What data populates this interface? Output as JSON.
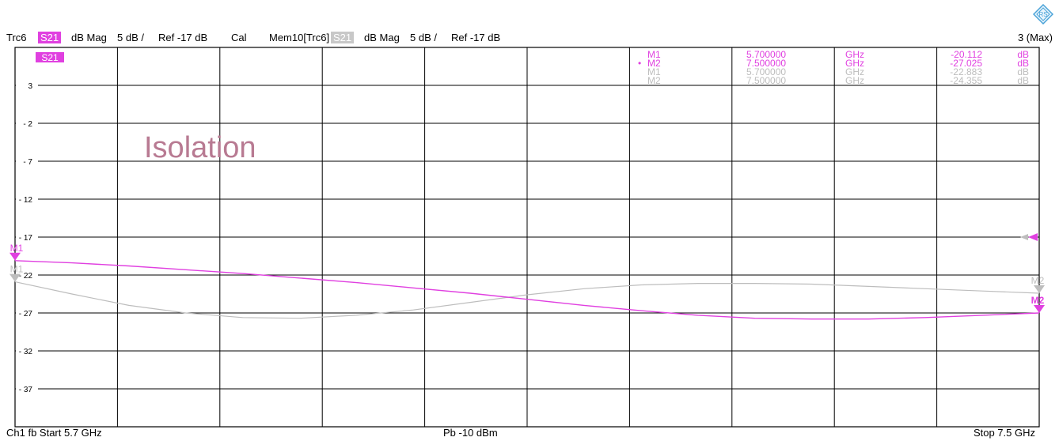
{
  "header": {
    "trace_name": "Trc6",
    "trace_param": "S21",
    "trace_format": "dB Mag",
    "trace_scale": "5 dB /",
    "trace_ref": "Ref -17 dB",
    "cal": "Cal",
    "mem_name": "Mem10[Trc6]",
    "mem_param": "S21",
    "mem_format": "dB Mag",
    "mem_scale": "5 dB /",
    "mem_ref": "Ref -17 dB",
    "right": "3 (Max)"
  },
  "footer": {
    "left": "Ch1  fb  Start  5.7 GHz",
    "center": "Pb  -10 dBm",
    "right": "Stop  7.5 GHz"
  },
  "colors": {
    "trace": "#e040e0",
    "memory": "#bdbdbd",
    "grid": "#000000",
    "annotation": "#b87a92",
    "logo": "#4aa3d8"
  },
  "logo_icon": "rohde-schwarz-logo-icon",
  "chart_data": {
    "type": "line",
    "title": "",
    "annotation": "Isolation",
    "trace_label": "S21",
    "x_unit": "GHz",
    "y_unit": "dB",
    "xlim": [
      5.7,
      7.5
    ],
    "ylim": [
      -42,
      8
    ],
    "x_divisions": 10,
    "y_ticks": [
      3,
      -2,
      -7,
      -12,
      -17,
      -22,
      -27,
      -32,
      -37
    ],
    "ref_level": -17,
    "grid": true,
    "series": [
      {
        "name": "S21",
        "x": [
          5.7,
          5.8,
          5.9,
          6.0,
          6.1,
          6.2,
          6.3,
          6.4,
          6.5,
          6.6,
          6.7,
          6.8,
          6.9,
          7.0,
          7.1,
          7.2,
          7.3,
          7.4,
          7.5
        ],
        "y": [
          -20.1,
          -20.4,
          -20.8,
          -21.3,
          -21.8,
          -22.4,
          -23.0,
          -23.7,
          -24.4,
          -25.2,
          -26.0,
          -26.7,
          -27.3,
          -27.7,
          -27.8,
          -27.8,
          -27.6,
          -27.3,
          -27.0
        ]
      },
      {
        "name": "Mem10[Trc6] S21",
        "x": [
          5.7,
          5.8,
          5.9,
          6.0,
          6.1,
          6.2,
          6.3,
          6.4,
          6.5,
          6.6,
          6.7,
          6.8,
          6.9,
          7.0,
          7.1,
          7.2,
          7.3,
          7.4,
          7.5
        ],
        "y": [
          -22.9,
          -24.5,
          -26.0,
          -27.0,
          -27.6,
          -27.7,
          -27.3,
          -26.6,
          -25.6,
          -24.6,
          -23.8,
          -23.3,
          -23.1,
          -23.1,
          -23.2,
          -23.5,
          -23.8,
          -24.1,
          -24.4
        ]
      }
    ],
    "markers": [
      {
        "label": "M1",
        "x": 5.7,
        "y": -20.1,
        "series": 0
      },
      {
        "label": "M2",
        "x": 7.5,
        "y": -27.0,
        "series": 0
      },
      {
        "label": "M1",
        "x": 5.7,
        "y": -22.9,
        "series": 1
      },
      {
        "label": "M2",
        "x": 7.5,
        "y": -24.4,
        "series": 1
      }
    ],
    "marker_table": [
      {
        "prefix": "",
        "name": "M1",
        "freq": "5.700000",
        "funit": "GHz",
        "value": "-20.112",
        "vunit": "dB",
        "trace": 0
      },
      {
        "prefix": "•",
        "name": "M2",
        "freq": "7.500000",
        "funit": "GHz",
        "value": "-27.025",
        "vunit": "dB",
        "trace": 0
      },
      {
        "prefix": "",
        "name": "M1",
        "freq": "5.700000",
        "funit": "GHz",
        "value": "-22.883",
        "vunit": "dB",
        "trace": 1
      },
      {
        "prefix": "",
        "name": "M2",
        "freq": "7.500000",
        "funit": "GHz",
        "value": "-24.355",
        "vunit": "dB",
        "trace": 1
      }
    ]
  }
}
